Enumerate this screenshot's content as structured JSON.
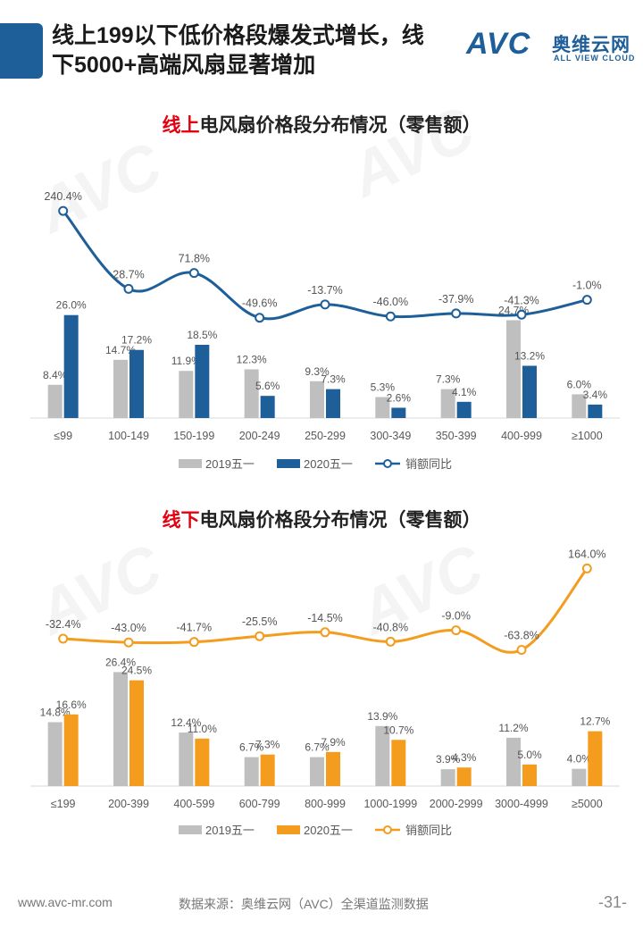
{
  "header": {
    "title_line1": "线上199以下低价格段爆发式增长，线",
    "title_line2": "下5000+高端风扇显著增加"
  },
  "logo": {
    "mark": "AVC",
    "cn": "奥维云网",
    "en": "ALL VIEW CLOUD"
  },
  "watermark": "AVC",
  "colors": {
    "accent": "#1f5f99",
    "gray_bar": "#bfbfbf",
    "online_bar": "#1f5f99",
    "offline_bar": "#f39c1e",
    "highlight_red": "#e3000f"
  },
  "chart_data": [
    {
      "type": "bar",
      "title_prefix": "线上",
      "title_rest": "电风扇价格段分布情况（零售额）",
      "categories": [
        "≤99",
        "100-149",
        "150-199",
        "200-249",
        "250-299",
        "300-349",
        "350-399",
        "400-999",
        "≥1000"
      ],
      "series": [
        {
          "name": "2019五一",
          "kind": "bar",
          "color": "#bfbfbf",
          "values": [
            8.4,
            14.7,
            11.9,
            12.3,
            9.3,
            5.3,
            7.3,
            24.7,
            6.0
          ]
        },
        {
          "name": "2020五一",
          "kind": "bar",
          "color": "#1f5f99",
          "values": [
            26.0,
            17.2,
            18.5,
            5.6,
            7.3,
            2.6,
            4.1,
            13.2,
            3.4
          ]
        },
        {
          "name": "销额同比",
          "kind": "line",
          "color": "#1f5f99",
          "values": [
            240.4,
            28.7,
            71.8,
            -49.6,
            -13.7,
            -46.0,
            -37.9,
            -41.3,
            -1.0
          ]
        }
      ],
      "bar_labels": [
        "8.4%",
        "14.7%",
        "11.9%",
        "12.3%",
        "9.3%",
        "5.3%",
        "7.3%",
        "24.7%",
        "6.0%"
      ],
      "bar_labels_2020": [
        "26.0%",
        "17.2%",
        "18.5%",
        "5.6%",
        "7.3%",
        "2.6%",
        "4.1%",
        "13.2%",
        "3.4%"
      ],
      "line_labels": [
        "240.4%",
        "28.7%",
        "71.8%",
        "-49.6%",
        "-13.7%",
        "-46.0%",
        "-37.9%",
        "-41.3%",
        "-1.0%"
      ],
      "bar_ylim": [
        0,
        30
      ],
      "line_ylim": [
        -60,
        260
      ]
    },
    {
      "type": "bar",
      "title_prefix": "线下",
      "title_rest": "电风扇价格段分布情况（零售额）",
      "categories": [
        "≤199",
        "200-399",
        "400-599",
        "600-799",
        "800-999",
        "1000-1999",
        "2000-2999",
        "3000-4999",
        "≥5000"
      ],
      "series": [
        {
          "name": "2019五一",
          "kind": "bar",
          "color": "#bfbfbf",
          "values": [
            14.8,
            26.4,
            12.4,
            6.7,
            6.7,
            13.9,
            3.9,
            11.2,
            4.0
          ]
        },
        {
          "name": "2020五一",
          "kind": "bar",
          "color": "#f39c1e",
          "values": [
            16.6,
            24.5,
            11.0,
            7.3,
            7.9,
            10.7,
            4.3,
            5.0,
            12.7
          ]
        },
        {
          "name": "销额同比",
          "kind": "line",
          "color": "#f39c1e",
          "values": [
            -32.4,
            -43.0,
            -41.7,
            -25.5,
            -14.5,
            -40.8,
            -9.0,
            -63.8,
            164.0
          ]
        }
      ],
      "bar_labels": [
        "14.8%",
        "26.4%",
        "12.4%",
        "6.7%",
        "6.7%",
        "13.9%",
        "3.9%",
        "11.2%",
        "4.0%"
      ],
      "bar_labels_2020": [
        "16.6%",
        "24.5%",
        "11.0%",
        "7.3%",
        "7.9%",
        "10.7%",
        "4.3%",
        "5.0%",
        "12.7%"
      ],
      "line_labels": [
        "-32.4%",
        "-43.0%",
        "-41.7%",
        "-25.5%",
        "-14.5%",
        "-40.8%",
        "-9.0%",
        "-63.8%",
        "164.0%"
      ],
      "bar_ylim": [
        0,
        30
      ],
      "line_ylim": [
        -80,
        180
      ]
    }
  ],
  "footer": {
    "url": "www.avc-mr.com",
    "source": "数据来源：奥维云网（AVC）全渠道监测数据",
    "page": "-31-"
  }
}
